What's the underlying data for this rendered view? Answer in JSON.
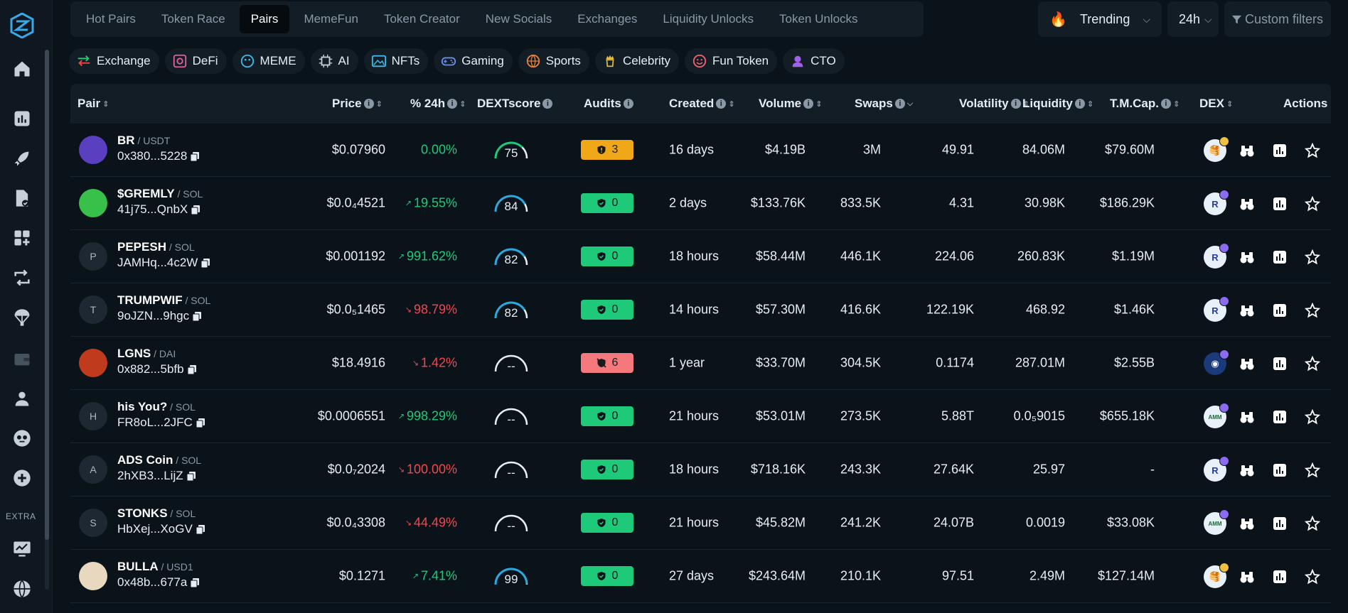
{
  "nav_tabs": [
    {
      "label": "Hot Pairs",
      "active": false
    },
    {
      "label": "Token Race",
      "active": false
    },
    {
      "label": "Pairs",
      "active": true
    },
    {
      "label": "MemeFun",
      "active": false
    },
    {
      "label": "Token Creator",
      "active": false
    },
    {
      "label": "New Socials",
      "active": false
    },
    {
      "label": "Exchanges",
      "active": false
    },
    {
      "label": "Liquidity Unlocks",
      "active": false
    },
    {
      "label": "Token Unlocks",
      "active": false
    }
  ],
  "controls": {
    "trending_label": "Trending",
    "timeframe_label": "24h",
    "custom_filters_label": "Custom filters"
  },
  "categories": [
    {
      "label": "Exchange",
      "icon": "exchange-icon"
    },
    {
      "label": "DeFi",
      "icon": "defi-icon"
    },
    {
      "label": "MEME",
      "icon": "meme-icon"
    },
    {
      "label": "AI",
      "icon": "chip-icon"
    },
    {
      "label": "NFTs",
      "icon": "image-icon"
    },
    {
      "label": "Gaming",
      "icon": "gamepad-icon"
    },
    {
      "label": "Sports",
      "icon": "ball-icon"
    },
    {
      "label": "Celebrity",
      "icon": "celebrity-icon"
    },
    {
      "label": "Fun Token",
      "icon": "smile-icon"
    },
    {
      "label": "CTO",
      "icon": "cto-icon"
    }
  ],
  "sidebar": {
    "extra_label": "EXTRA"
  },
  "columns": {
    "pair": "Pair",
    "price": "Price",
    "change24h": "% 24h",
    "dextscore": "DEXTscore",
    "audits": "Audits",
    "created": "Created",
    "volume": "Volume",
    "swaps": "Swaps",
    "volatility": "Volatility",
    "liquidity": "Liquidity",
    "tmcap": "T.M.Cap.",
    "dex": "DEX",
    "actions": "Actions"
  },
  "rows": [
    {
      "avatar": "",
      "name": "BR",
      "quote": "USDT",
      "address": "0x380...5228",
      "price": "$0.07960",
      "change": "0.00%",
      "dir": "pos",
      "arrow": "",
      "score": "75",
      "score_value": 75,
      "audit": "3",
      "audit_type": "warn",
      "created": "16 days",
      "volume": "$4.19B",
      "swaps": "3M",
      "volatility": "49.91",
      "liquidity": "84.06M",
      "tmcap": "$79.60M",
      "dex": "bsc"
    },
    {
      "avatar": "",
      "name": "$GREMLY",
      "quote": "SOL",
      "address": "41j75...QnbX",
      "price": "$0.0₄4521",
      "change": "19.55%",
      "dir": "pos",
      "arrow": "↗",
      "score": "84",
      "score_value": 84,
      "audit": "0",
      "audit_type": "ok",
      "created": "2 days",
      "volume": "$133.76K",
      "swaps": "833.5K",
      "volatility": "4.31",
      "liquidity": "30.98K",
      "tmcap": "$186.29K",
      "dex": "sol"
    },
    {
      "avatar": "P",
      "name": "PEPESH",
      "quote": "SOL",
      "address": "JAMHq...4c2W",
      "price": "$0.001192",
      "change": "991.62%",
      "dir": "pos",
      "arrow": "↗",
      "score": "82",
      "score_value": 82,
      "audit": "0",
      "audit_type": "ok",
      "created": "18 hours",
      "volume": "$58.44M",
      "swaps": "446.1K",
      "volatility": "224.06",
      "liquidity": "260.83K",
      "tmcap": "$1.19M",
      "dex": "sol"
    },
    {
      "avatar": "T",
      "name": "TRUMPWIF",
      "quote": "SOL",
      "address": "9oJZN...9hgc",
      "price": "$0.0₅1465",
      "change": "98.79%",
      "dir": "neg",
      "arrow": "↘",
      "score": "82",
      "score_value": 82,
      "audit": "0",
      "audit_type": "ok",
      "created": "14 hours",
      "volume": "$57.30M",
      "swaps": "416.6K",
      "volatility": "122.19K",
      "liquidity": "468.92",
      "tmcap": "$1.46K",
      "dex": "sol"
    },
    {
      "avatar": "",
      "name": "LGNS",
      "quote": "DAI",
      "address": "0x882...5bfb",
      "price": "$18.4916",
      "change": "1.42%",
      "dir": "neg",
      "arrow": "↘",
      "score": "--",
      "score_value": 0,
      "audit": "6",
      "audit_type": "bad",
      "created": "1 year",
      "volume": "$33.70M",
      "swaps": "304.5K",
      "volatility": "0.1174",
      "liquidity": "287.01M",
      "tmcap": "$2.55B",
      "dex": "eth"
    },
    {
      "avatar": "H",
      "name": "his You?",
      "quote": "SOL",
      "address": "FR8oL...2JFC",
      "price": "$0.0006551",
      "change": "998.29%",
      "dir": "pos",
      "arrow": "↗",
      "score": "--",
      "score_value": 0,
      "audit": "0",
      "audit_type": "ok",
      "created": "21 hours",
      "volume": "$53.01M",
      "swaps": "273.5K",
      "volatility": "5.88T",
      "liquidity": "0.0₅9015",
      "tmcap": "$655.18K",
      "dex": "amm"
    },
    {
      "avatar": "A",
      "name": "ADS Coin",
      "quote": "SOL",
      "address": "2hXB3...LijZ",
      "price": "$0.0₇2024",
      "change": "100.00%",
      "dir": "neg",
      "arrow": "↘",
      "score": "--",
      "score_value": 0,
      "audit": "0",
      "audit_type": "ok",
      "created": "18 hours",
      "volume": "$718.16K",
      "swaps": "243.3K",
      "volatility": "27.64K",
      "liquidity": "25.97",
      "tmcap": "-",
      "dex": "sol"
    },
    {
      "avatar": "S",
      "name": "STONKS",
      "quote": "SOL",
      "address": "HbXej...XoGV",
      "price": "$0.0₄3308",
      "change": "44.49%",
      "dir": "neg",
      "arrow": "↘",
      "score": "--",
      "score_value": 0,
      "audit": "0",
      "audit_type": "ok",
      "created": "21 hours",
      "volume": "$45.82M",
      "swaps": "241.2K",
      "volatility": "24.07B",
      "liquidity": "0.0019",
      "tmcap": "$33.08K",
      "dex": "amm"
    },
    {
      "avatar": "",
      "name": "BULLA",
      "quote": "USD1",
      "address": "0x48b...677a",
      "price": "$0.1271",
      "change": "7.41%",
      "dir": "pos",
      "arrow": "↗",
      "score": "99",
      "score_value": 99,
      "audit": "0",
      "audit_type": "ok",
      "created": "27 days",
      "volume": "$243.64M",
      "swaps": "210.1K",
      "volatility": "97.51",
      "liquidity": "2.49M",
      "tmcap": "$127.14M",
      "dex": "bsc"
    }
  ],
  "colors": {
    "positive": "#1ec97a",
    "negative": "#f0484f",
    "warning": "#f0a818",
    "gauge_blue": "#2aa8e0",
    "gauge_green": "#1ec97a"
  }
}
